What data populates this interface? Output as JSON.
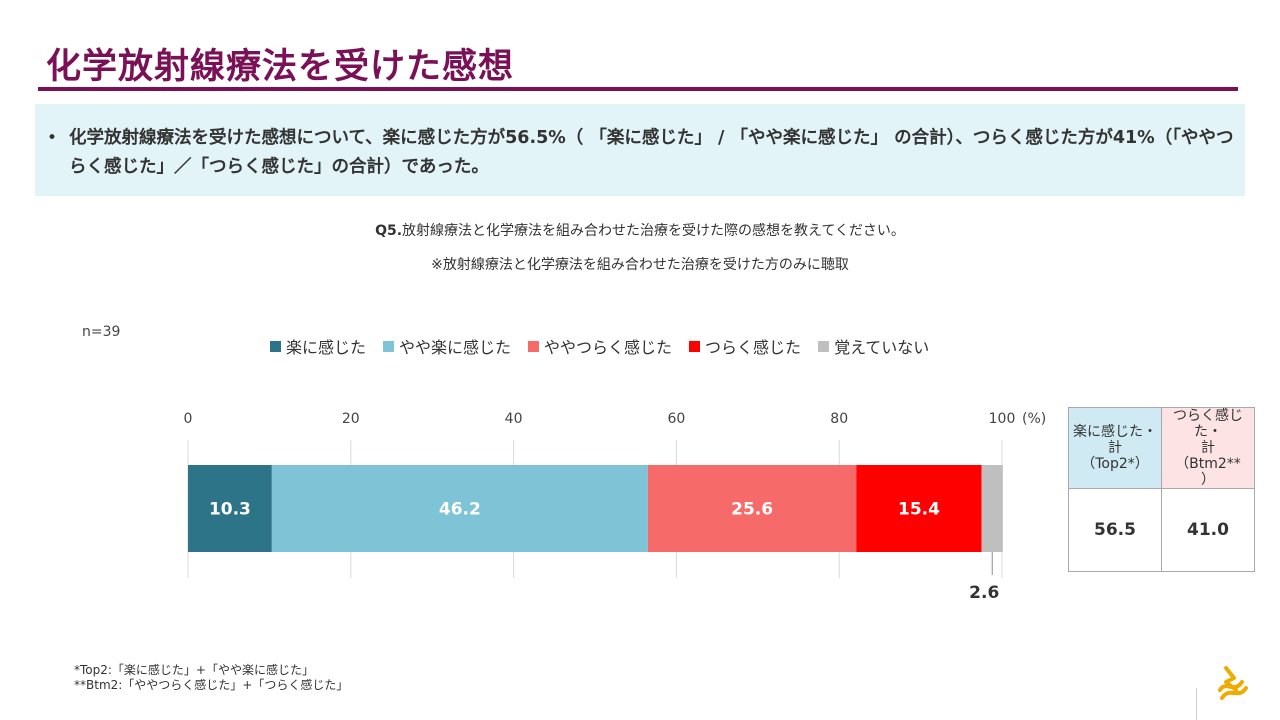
{
  "title": "化学放射線療法を受けた感想",
  "summary": {
    "bullet": "•",
    "text": "化学放射線療法を受けた感想について、楽に感じた方が56.5%（ 「楽に感じた」 / 「やや楽に感じた」 の合計）、つらく感じた方が41%（「ややつらく感じた」／「つらく感じた」の合計）であった。"
  },
  "question": {
    "label": "Q5.",
    "text": "放射線療法と化学療法を組み合わせた治療を受けた際の感想を教えてください。",
    "note": "※放射線療法と化学療法を組み合わせた治療を受けた方のみに聴取"
  },
  "sample": "n=39",
  "chart_data": {
    "type": "bar",
    "orientation": "horizontal-stacked",
    "axis_unit": "(%)",
    "xlim": [
      0,
      100
    ],
    "ticks": [
      0,
      20,
      40,
      60,
      80,
      100
    ],
    "grid": true,
    "legend_position": "top",
    "series": [
      {
        "name": "楽に感じた",
        "value": 10.3,
        "color": "#2d7488",
        "label": "10.3"
      },
      {
        "name": "やや楽に感じた",
        "value": 46.2,
        "color": "#7fc4d6",
        "label": "46.2"
      },
      {
        "name": "ややつらく感じた",
        "value": 25.6,
        "color": "#f66a6a",
        "label": "25.6"
      },
      {
        "name": "つらく感じた",
        "value": 15.4,
        "color": "#ff0000",
        "label": "15.4"
      },
      {
        "name": "覚えていない",
        "value": 2.6,
        "color": "#bfbfbf",
        "label": "2.6"
      }
    ]
  },
  "side_table": {
    "top2_header": [
      "楽に感じた・",
      "計",
      "（Top2*）"
    ],
    "btm2_header": [
      "つらく感じた・",
      "計",
      "（Btm2**",
      "）"
    ],
    "top2_value": "56.5",
    "btm2_value": "41.0",
    "top2_color": "#cfeaf3",
    "btm2_color": "#fde3e4"
  },
  "footnotes": [
    "*Top2:「楽に感じた」+「やや楽に感じた」",
    "**Btm2:「ややつらく感じた」+「つらく感じた」"
  ],
  "brand_color": "#7a1156",
  "logo_color": "#f0ab00"
}
